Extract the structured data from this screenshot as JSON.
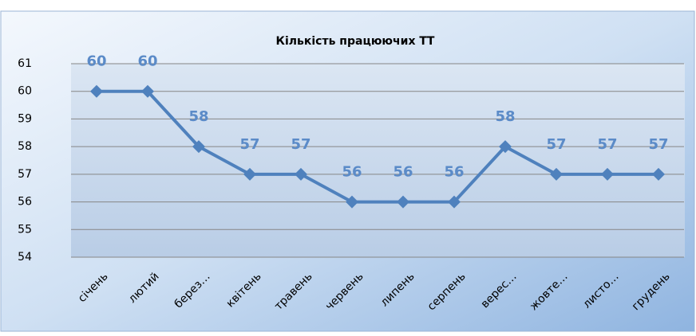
{
  "chart_data": {
    "type": "line",
    "title": "Кількість працюючих ТТ",
    "categories": [
      "січень",
      "лютий",
      "берез…",
      "квітень",
      "травень",
      "червень",
      "липень",
      "серпень",
      "верес…",
      "жовте…",
      "листо…",
      "грудень"
    ],
    "series": [
      {
        "name": "Кількість працюючих ТТ",
        "color": "#4f81bd",
        "values": [
          60,
          60,
          58,
          57,
          57,
          56,
          56,
          56,
          58,
          57,
          57,
          57
        ]
      }
    ],
    "ylim": [
      54,
      61
    ],
    "yticks": [
      54,
      55,
      56,
      57,
      58,
      59,
      60,
      61
    ],
    "grid": true,
    "data_labels": true
  }
}
